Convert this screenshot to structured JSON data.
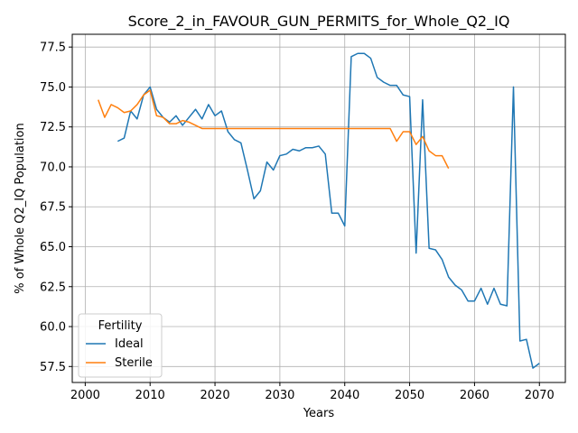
{
  "chart_data": {
    "type": "line",
    "title": "Score_2_in_FAVOUR_GUN_PERMITS_for_Whole_Q2_IQ",
    "xlabel": "Years",
    "ylabel": "% of Whole Q2_IQ Population",
    "xlim": [
      1998,
      2074
    ],
    "ylim": [
      56.5,
      78.3
    ],
    "xticks": [
      2000,
      2010,
      2020,
      2030,
      2040,
      2050,
      2060,
      2070
    ],
    "yticks": [
      57.5,
      60.0,
      62.5,
      65.0,
      67.5,
      70.0,
      72.5,
      75.0,
      77.5
    ],
    "xtick_labels": [
      "2000",
      "2010",
      "2020",
      "2030",
      "2040",
      "2050",
      "2060",
      "2070"
    ],
    "ytick_labels": [
      "57.5",
      "60.0",
      "62.5",
      "65.0",
      "67.5",
      "70.0",
      "72.5",
      "75.0",
      "77.5"
    ],
    "grid": true,
    "legend": {
      "title": "Fertility",
      "placement": "lower-left"
    },
    "series": [
      {
        "name": "Ideal",
        "color": "#1f77b4",
        "x": [
          2005,
          2006,
          2007,
          2008,
          2009,
          2010,
          2011,
          2012,
          2013,
          2014,
          2015,
          2016,
          2017,
          2018,
          2019,
          2020,
          2021,
          2022,
          2023,
          2024,
          2025,
          2026,
          2027,
          2028,
          2029,
          2030,
          2031,
          2032,
          2033,
          2034,
          2035,
          2036,
          2037,
          2038,
          2039,
          2040,
          2041,
          2042,
          2043,
          2044,
          2045,
          2046,
          2047,
          2048,
          2049,
          2050,
          2051,
          2052,
          2053,
          2054,
          2055,
          2056,
          2057,
          2058,
          2059,
          2060,
          2061,
          2062,
          2063,
          2064,
          2065,
          2066,
          2067,
          2068,
          2069,
          2070
        ],
        "y": [
          71.6,
          71.8,
          73.5,
          73.0,
          74.5,
          75.0,
          73.6,
          73.1,
          72.8,
          73.2,
          72.6,
          73.1,
          73.6,
          73.0,
          73.9,
          73.2,
          73.5,
          72.2,
          71.7,
          71.5,
          69.8,
          68.0,
          68.5,
          70.3,
          69.8,
          70.7,
          70.8,
          71.1,
          71.0,
          71.2,
          71.2,
          71.3,
          70.8,
          67.1,
          67.1,
          66.3,
          76.9,
          77.1,
          77.1,
          76.8,
          75.6,
          75.3,
          75.1,
          75.1,
          74.5,
          74.4,
          64.6,
          74.2,
          64.9,
          64.8,
          64.2,
          63.1,
          62.6,
          62.3,
          61.6,
          61.6,
          62.4,
          61.4,
          62.4,
          61.4,
          61.3,
          75.0,
          59.1,
          59.2,
          57.4,
          57.7
        ]
      },
      {
        "name": "Sterile",
        "color": "#ff7f0e",
        "x": [
          2002,
          2003,
          2004,
          2005,
          2006,
          2007,
          2008,
          2009,
          2010,
          2011,
          2012,
          2013,
          2014,
          2015,
          2016,
          2017,
          2018,
          2019,
          2020,
          2021,
          2022,
          2023,
          2024,
          2025,
          2026,
          2027,
          2028,
          2029,
          2030,
          2031,
          2032,
          2033,
          2034,
          2035,
          2036,
          2037,
          2038,
          2039,
          2040,
          2041,
          2042,
          2043,
          2044,
          2045,
          2046,
          2047,
          2048,
          2049,
          2050,
          2051,
          2052,
          2053,
          2054,
          2055,
          2056
        ],
        "y": [
          74.2,
          73.1,
          73.9,
          73.7,
          73.4,
          73.5,
          73.9,
          74.5,
          74.8,
          73.2,
          73.1,
          72.7,
          72.7,
          72.9,
          72.8,
          72.6,
          72.4,
          72.4,
          72.4,
          72.4,
          72.4,
          72.4,
          72.4,
          72.4,
          72.4,
          72.4,
          72.4,
          72.4,
          72.4,
          72.4,
          72.4,
          72.4,
          72.4,
          72.4,
          72.4,
          72.4,
          72.4,
          72.4,
          72.4,
          72.4,
          72.4,
          72.4,
          72.4,
          72.4,
          72.4,
          72.4,
          71.6,
          72.2,
          72.2,
          71.4,
          71.9,
          71.0,
          70.7,
          70.7,
          69.9
        ]
      }
    ]
  }
}
